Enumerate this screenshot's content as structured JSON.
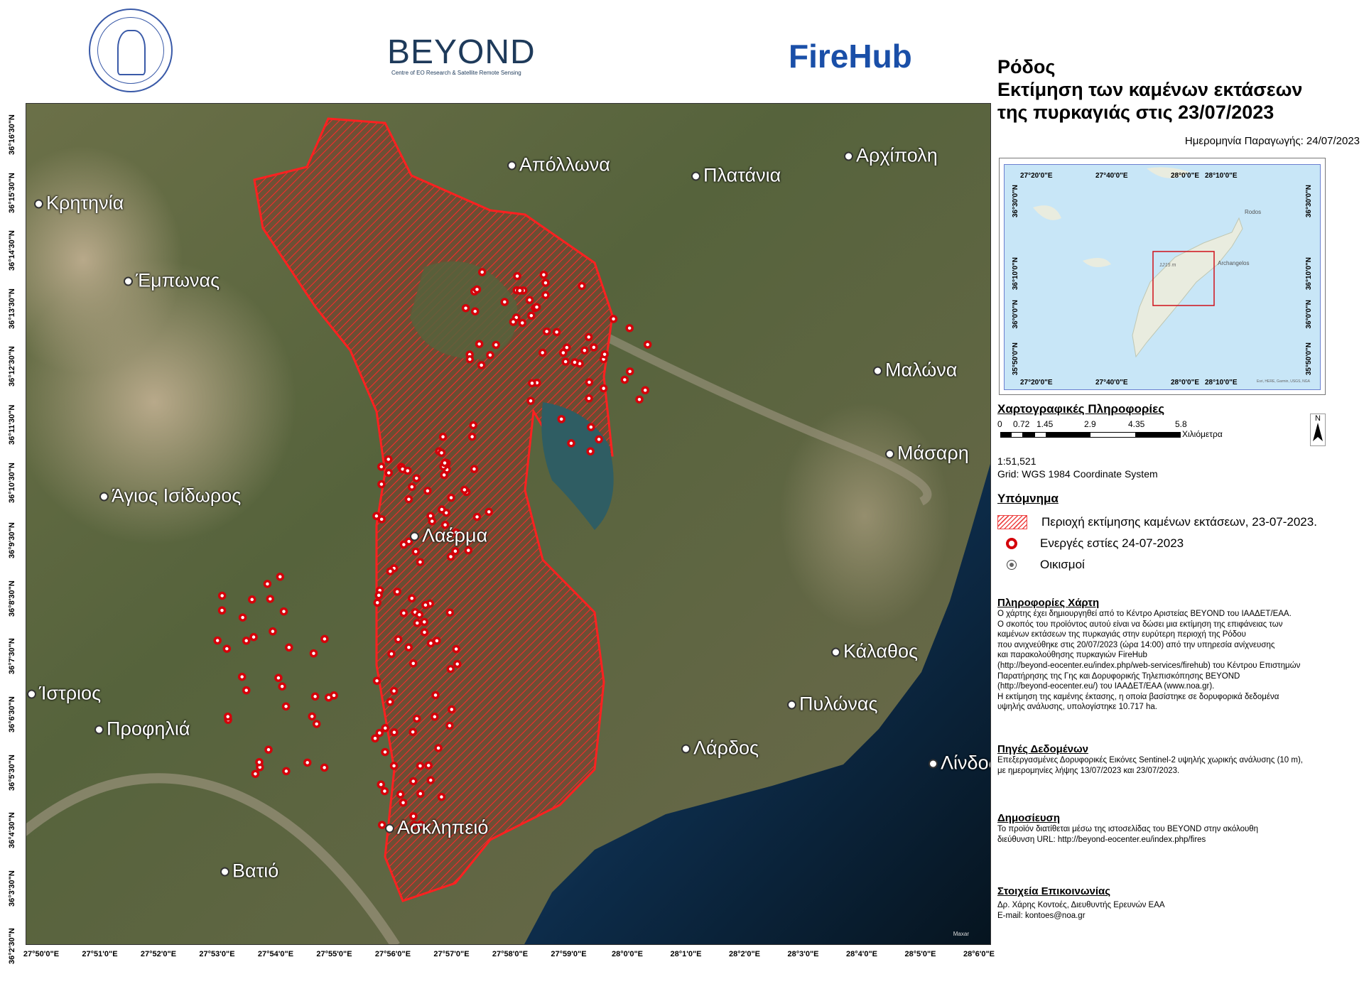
{
  "logos": {
    "noa": "National Observatory of Athens",
    "beyond": "BEYOND",
    "beyond_subtitle": "Centre of EO Research & Satellite Remote Sensing",
    "firehub": "FireHub"
  },
  "colors": {
    "burned_area": "#e02020",
    "active_fire": "#d4000a",
    "firehub_blue": "#1a4fa8"
  },
  "title": {
    "line1": "Ρόδος",
    "line2": "Εκτίμηση των καμένων εκτάσεων",
    "line3": "της πυρκαγιάς στις 23/07/2023"
  },
  "production_date": "Ημερομηνία Παραγωγής: 24/07/2023",
  "inset_map": {
    "top_ticks": [
      "27°20'0\"E",
      "27°40'0\"E",
      "28°0'0\"E",
      "28°10'0\"E"
    ],
    "bottom_ticks": [
      "27°20'0\"E",
      "27°40'0\"E",
      "28°0'0\"E",
      "28°10'0\"E"
    ],
    "left_ticks": [
      "36°30'0\"N",
      "36°10'0\"N",
      "36°0'0\"N",
      "35°50'0\"N"
    ],
    "right_ticks": [
      "36°30'0\"N",
      "36°10'0\"N",
      "36°0'0\"N",
      "35°50'0\"N"
    ],
    "labels": {
      "rodos": "Rodos",
      "archangelos": "Archangelos",
      "peak": "1215 m"
    },
    "attribution": "Esri, HERE, Garmin, USGS, NGA"
  },
  "cartographic": {
    "heading": "Χαρτογραφικές Πληροφορίες",
    "scale_ticks": [
      "0",
      "0.72",
      "1.45",
      "2.9",
      "4.35",
      "5.8"
    ],
    "scale_unit": "Χιλιόμετρα",
    "north": "N",
    "scale_ratio": "1:51,521",
    "grid": "Grid:  WGS 1984 Coordinate System"
  },
  "legend": {
    "heading": "Υπόμνημα",
    "items": [
      {
        "symbol": "hatch",
        "label": "Περιοχή εκτίμησης καμένων εκτάσεων, 23-07-2023."
      },
      {
        "symbol": "red-dot",
        "label": "Ενεργές εστίες 24-07-2023"
      },
      {
        "symbol": "settlement",
        "label": "Οικισμοί"
      }
    ]
  },
  "map_info": {
    "heading": "Πληροφορίες Χάρτη",
    "lines": [
      "Ο χάρτης έχει δημιουργηθεί από το Κέντρο Αριστείας BEYOND του ΙΑΑΔΕΤ/ΕΑΑ.",
      "Ο σκοπός του προϊόντος αυτού είναι να δώσει μια εκτίμηση της επιφάνειας των",
      "καμένων εκτάσεων της πυρκαγιάς στην ευρύτερη περιοχή της Ρόδου",
      "που ανιχνεύθηκε στις 20/07/2023 (ώρα 14:00) από την υπηρεσία ανίχνευσης",
      "και παρακολούθησης πυρκαγιών FireHub",
      "(http://beyond-eocenter.eu/index.php/web-services/firehub) του Κέντρου Επιστημών",
      "Παρατήρησης της Γης και Δορυφορικής Τηλεπισκόπησης BEYOND",
      "(http://beyond-eocenter.eu/) του ΙΑΑΔΕΤ/ΕΑΑ (www.noa.gr).",
      "Η εκτίμηση της καμένης έκτασης, η οποία βασίστηκε σε δορυφορικά δεδομένα",
      "υψηλής ανάλυσης, υπολογίστηκε 10.717 ha."
    ]
  },
  "data_sources": {
    "heading": "Πηγές Δεδομένων",
    "lines": [
      "Επεξεργασμένες Δορυφορικές Εικόνες Sentinel-2 υψηλής χωρικής ανάλυσης (10 m),",
      "με ημερομηνίες λήψης 13/07/2023 και 23/07/2023."
    ]
  },
  "publication": {
    "heading": "Δημοσίευση",
    "lines": [
      "Το προϊόν διατίθεται μέσω της ιστοσελίδας του BEYOND στην ακόλουθη",
      "διεύθυνση URL: http://beyond-eocenter.eu/index.php/fires"
    ]
  },
  "contact": {
    "heading": "Στοιχεία Επικοινωνίας",
    "lines": [
      "Δρ. Χάρης Κοντοές, Διευθυντής Ερευνών ΕΑΑ",
      "E-mail: kontoes@noa.gr"
    ]
  },
  "map": {
    "lat_ticks": [
      "36°16'30\"N",
      "36°15'30\"N",
      "36°14'30\"N",
      "36°13'30\"N",
      "36°12'30\"N",
      "36°11'30\"N",
      "36°10'30\"N",
      "36°9'30\"N",
      "36°8'30\"N",
      "36°7'30\"N",
      "36°6'30\"N",
      "36°5'30\"N",
      "36°4'30\"N",
      "36°3'30\"N",
      "36°2'30\"N"
    ],
    "lon_ticks": [
      "27°50'0\"E",
      "27°51'0\"E",
      "27°52'0\"E",
      "27°53'0\"E",
      "27°54'0\"E",
      "27°55'0\"E",
      "27°56'0\"E",
      "27°57'0\"E",
      "27°58'0\"E",
      "27°59'0\"E",
      "28°0'0\"E",
      "28°1'0\"E",
      "28°2'0\"E",
      "28°3'0\"E",
      "28°4'0\"E",
      "28°5'0\"E",
      "28°6'0\"E"
    ],
    "places": [
      "Απόλλωνα",
      "Πλατάνια",
      "Αρχίπολη",
      "Κρητηνία",
      "Έμπωνας",
      "Μαλώνα",
      "Μάσαρη",
      "Άγιος Ισίδωρος",
      "Λαέρμα",
      "Κάλαθος",
      "Ίστριος",
      "Πυλώνας",
      "Προφηλιά",
      "Λάρδος",
      "Λίνδος",
      "Ασκληπειό",
      "Βατιό"
    ],
    "attribution": "Maxar"
  }
}
